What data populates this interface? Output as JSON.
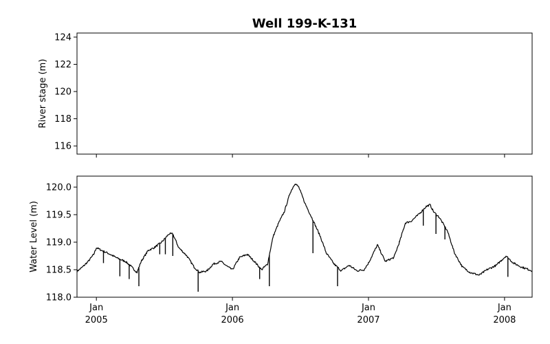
{
  "chart_data": [
    {
      "type": "line",
      "title": "Well 199-K-131",
      "ylabel": "River stage (m)",
      "ylim": [
        115.4,
        124.3
      ],
      "yticks": [
        "116",
        "118",
        "120",
        "122",
        "124"
      ],
      "series": []
    },
    {
      "type": "line",
      "ylabel": "Water Level (m)",
      "ylim": [
        118.0,
        120.2
      ],
      "yticks": [
        "118.0",
        "118.5",
        "119.0",
        "119.5",
        "120.0"
      ],
      "xlim": [
        "2004-11-10",
        "2008-03-15"
      ],
      "xticks": [
        {
          "date": "2005-01-01",
          "month": "Jan",
          "year": "2005"
        },
        {
          "date": "2006-01-01",
          "month": "Jan",
          "year": "2006"
        },
        {
          "date": "2007-01-01",
          "month": "Jan",
          "year": "2007"
        },
        {
          "date": "2008-01-01",
          "month": "Jan",
          "year": "2008"
        }
      ],
      "color": "#000000",
      "series": [
        {
          "x": [
            "2004-11-10",
            "2004-11-25",
            "2004-12-10",
            "2004-12-25",
            "2005-01-01",
            "2005-01-15",
            "2005-02-01",
            "2005-02-15",
            "2005-03-01",
            "2005-03-20",
            "2005-04-01",
            "2005-04-20",
            "2005-05-01",
            "2005-05-20",
            "2005-06-05",
            "2005-06-25",
            "2005-07-15",
            "2005-07-25",
            "2005-08-10",
            "2005-09-01",
            "2005-09-20",
            "2005-10-05",
            "2005-10-25",
            "2005-11-10",
            "2005-12-01",
            "2005-12-20",
            "2006-01-01",
            "2006-01-20",
            "2006-02-10",
            "2006-03-01",
            "2006-03-20",
            "2006-04-05",
            "2006-04-20",
            "2006-05-05",
            "2006-05-20",
            "2006-06-05",
            "2006-06-18",
            "2006-06-28",
            "2006-07-15",
            "2006-08-05",
            "2006-08-25",
            "2006-09-10",
            "2006-10-01",
            "2006-10-20",
            "2006-11-10",
            "2006-12-01",
            "2006-12-20",
            "2007-01-01",
            "2007-01-25",
            "2007-02-15",
            "2007-03-10",
            "2007-03-25",
            "2007-04-10",
            "2007-04-25",
            "2007-05-15",
            "2007-06-05",
            "2007-06-15",
            "2007-06-25",
            "2007-07-10",
            "2007-08-01",
            "2007-08-20",
            "2007-09-10",
            "2007-10-01",
            "2007-10-25",
            "2007-11-15",
            "2007-12-10",
            "2007-12-25",
            "2008-01-05",
            "2008-01-25",
            "2008-02-15",
            "2008-03-15"
          ],
          "y": [
            118.47,
            118.55,
            118.65,
            118.78,
            118.9,
            118.85,
            118.8,
            118.75,
            118.7,
            118.65,
            118.58,
            118.45,
            118.65,
            118.85,
            118.9,
            119.0,
            119.15,
            119.15,
            118.9,
            118.75,
            118.55,
            118.45,
            118.48,
            118.6,
            118.65,
            118.55,
            118.5,
            118.72,
            118.78,
            118.65,
            118.5,
            118.6,
            119.1,
            119.35,
            119.55,
            119.9,
            120.07,
            120.0,
            119.7,
            119.4,
            119.1,
            118.8,
            118.6,
            118.48,
            118.58,
            118.48,
            118.5,
            118.62,
            118.95,
            118.65,
            118.72,
            119.0,
            119.35,
            119.38,
            119.5,
            119.65,
            119.68,
            119.55,
            119.45,
            119.2,
            118.8,
            118.55,
            118.45,
            118.4,
            118.5,
            118.58,
            118.68,
            118.75,
            118.62,
            118.55,
            118.48
          ]
        }
      ],
      "spikes": [
        {
          "date": "2005-01-20",
          "low": 118.62
        },
        {
          "date": "2005-03-05",
          "low": 118.38
        },
        {
          "date": "2005-03-30",
          "low": 118.33
        },
        {
          "date": "2005-04-25",
          "low": 118.2
        },
        {
          "date": "2005-06-20",
          "low": 118.78
        },
        {
          "date": "2005-07-05",
          "low": 118.78
        },
        {
          "date": "2005-07-25",
          "low": 118.75
        },
        {
          "date": "2005-10-01",
          "low": 118.1
        },
        {
          "date": "2006-03-15",
          "low": 118.33
        },
        {
          "date": "2006-04-10",
          "low": 118.2
        },
        {
          "date": "2006-08-05",
          "low": 118.8
        },
        {
          "date": "2006-10-10",
          "low": 118.2
        },
        {
          "date": "2007-03-25",
          "low": 119.02
        },
        {
          "date": "2007-05-28",
          "low": 119.3
        },
        {
          "date": "2007-07-01",
          "low": 119.15
        },
        {
          "date": "2007-07-25",
          "low": 119.05
        },
        {
          "date": "2008-01-10",
          "low": 118.37
        }
      ]
    }
  ]
}
